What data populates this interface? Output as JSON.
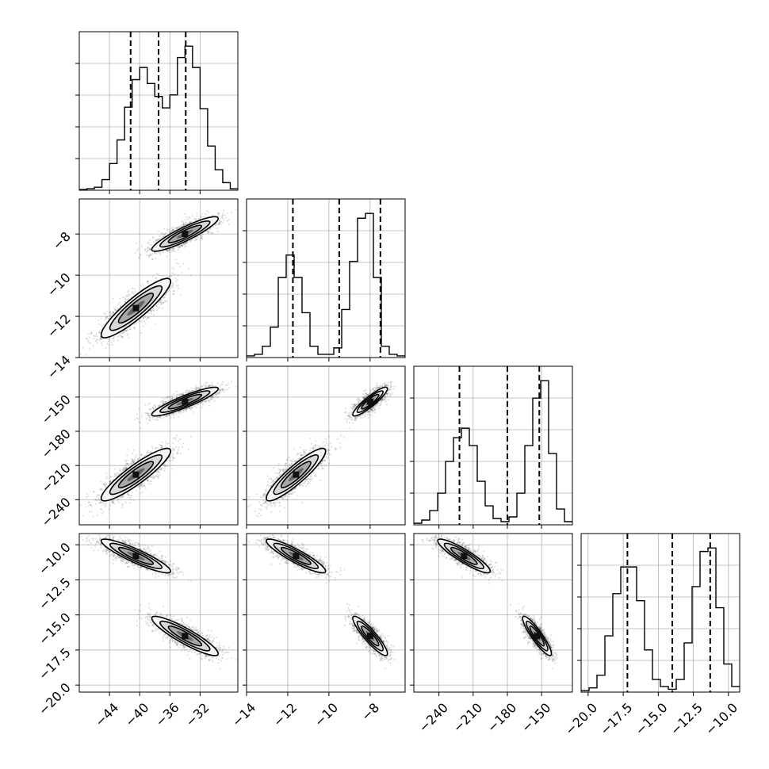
{
  "chart_data": {
    "type": "corner",
    "grid": true,
    "parameters": [
      {
        "range": [
          -48,
          -27
        ],
        "ticks": [
          -44,
          -40,
          -36,
          -32
        ],
        "tick_labels": [
          "−44",
          "−40",
          "−36",
          "−32"
        ],
        "quantiles": [
          -41.2,
          -37.5,
          -33.9
        ],
        "histogram": {
          "bin_width": 1.0,
          "bin_start": -48,
          "counts": [
            1,
            2,
            4,
            14,
            35,
            66,
            109,
            145,
            161,
            140,
            123,
            108,
            125,
            174,
            189,
            161,
            107,
            58,
            27,
            10,
            2
          ]
        }
      },
      {
        "range": [
          -14,
          -6.3
        ],
        "ticks": [
          -14,
          -12,
          -10,
          -8
        ],
        "tick_labels": [
          "−14",
          "−12",
          "−10",
          "−8"
        ],
        "quantiles": [
          -11.75,
          -9.5,
          -7.5
        ],
        "histogram": {
          "bin_width": 0.385,
          "bin_start": -14,
          "counts": [
            2,
            4,
            14,
            38,
            100,
            128,
            100,
            56,
            14,
            4,
            4,
            12,
            60,
            120,
            174,
            180,
            100,
            14,
            4,
            2
          ]
        }
      },
      {
        "range": [
          -262,
          -123
        ],
        "ticks": [
          -240,
          -210,
          -180,
          -150
        ],
        "tick_labels": [
          "−240",
          "−210",
          "−180",
          "−150"
        ],
        "quantiles": [
          -222,
          -180,
          -152
        ],
        "histogram": {
          "bin_width": 6.95,
          "bin_start": -262,
          "counts": [
            2,
            6,
            18,
            40,
            80,
            110,
            122,
            100,
            55,
            24,
            8,
            4,
            10,
            40,
            100,
            160,
            182,
            90,
            20,
            4
          ]
        }
      },
      {
        "range": [
          -20.5,
          -9.2
        ],
        "ticks": [
          -20,
          -17.5,
          -15,
          -12.5,
          -10
        ],
        "tick_labels": [
          "−20.0",
          "−17.5",
          "−15.0",
          "−12.5",
          "−10.0"
        ],
        "quantiles": [
          -17.2,
          -14.0,
          -11.3
        ],
        "histogram": {
          "bin_width": 0.565,
          "bin_start": -20.5,
          "counts": [
            2,
            6,
            24,
            80,
            140,
            178,
            178,
            130,
            60,
            18,
            8,
            4,
            18,
            70,
            150,
            200,
            205,
            120,
            40,
            8
          ]
        }
      }
    ],
    "clusters": [
      {
        "means": [
          -40.5,
          -11.6,
          -218,
          -10.8
        ],
        "sd": [
          2.3,
          0.72,
          11.5,
          0.6
        ]
      },
      {
        "means": [
          -34.0,
          -8.0,
          -154,
          -16.5
        ],
        "sd": [
          2.2,
          0.42,
          6.3,
          0.7
        ]
      }
    ]
  }
}
